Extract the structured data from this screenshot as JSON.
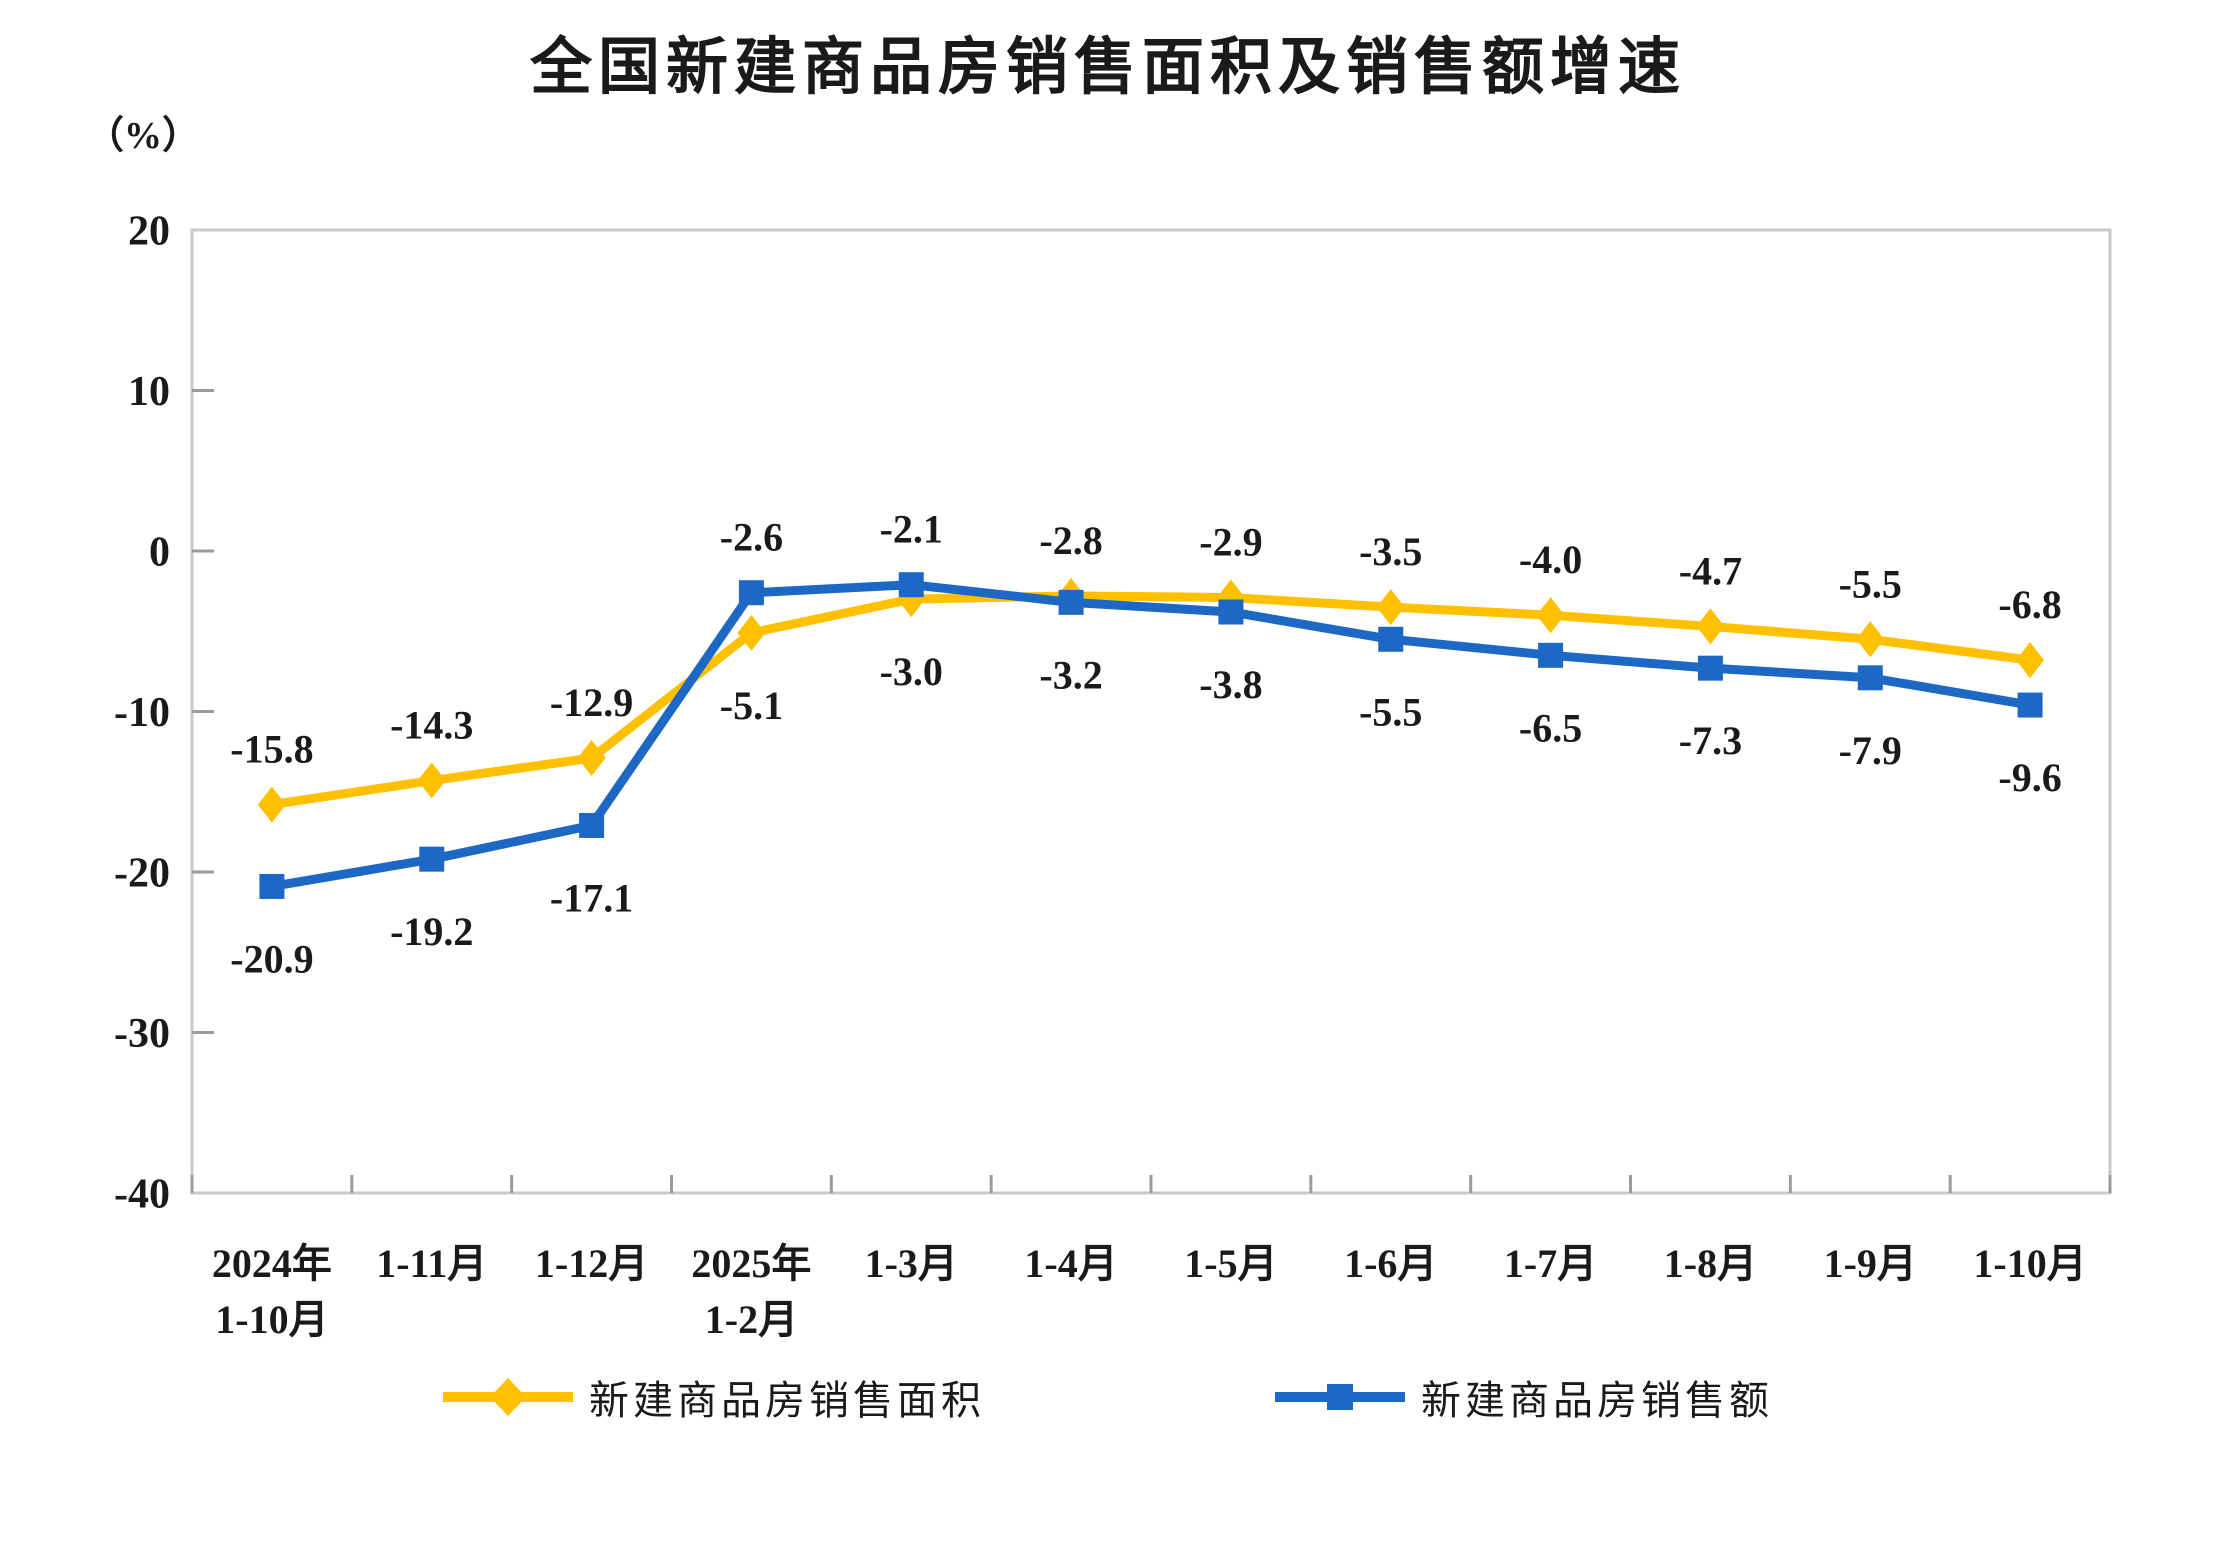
{
  "chart_data": {
    "type": "line",
    "title": "全国新建商品房销售面积及销售额增速",
    "y_unit": "（%）",
    "categories": [
      "2024年\n1-10月",
      "1-11月",
      "1-12月",
      "2025年\n1-2月",
      "1-3月",
      "1-4月",
      "1-5月",
      "1-6月",
      "1-7月",
      "1-8月",
      "1-9月",
      "1-10月"
    ],
    "series": [
      {
        "name": "新建商品房销售面积",
        "color": "#FFC000",
        "marker": "diamond",
        "values": [
          -15.8,
          -14.3,
          -12.9,
          -5.1,
          -3.0,
          -2.8,
          -2.9,
          -3.5,
          -4.0,
          -4.7,
          -5.5,
          -6.8
        ]
      },
      {
        "name": "新建商品房销售额",
        "color": "#1E68C5",
        "marker": "square",
        "values": [
          -20.9,
          -19.2,
          -17.1,
          -2.6,
          -2.1,
          -3.2,
          -3.8,
          -5.5,
          -6.5,
          -7.3,
          -7.9,
          -9.6
        ]
      }
    ],
    "ylim": [
      -40,
      20
    ],
    "y_ticks": [
      20,
      10,
      0,
      -10,
      -20,
      -30,
      -40
    ],
    "grid": false,
    "legend_position": "bottom",
    "axis_color": "#C9C9C9",
    "tick_color": "#9B9B9B",
    "text_color": "#1A1A1A"
  }
}
